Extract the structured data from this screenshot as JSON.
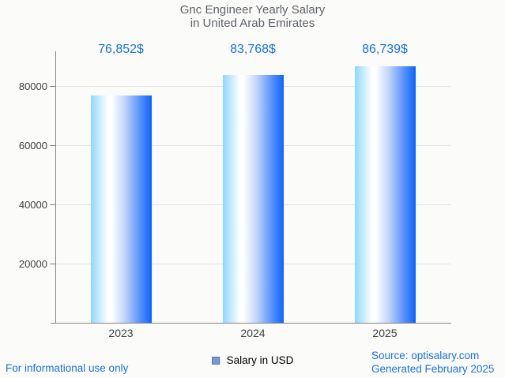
{
  "title": {
    "line1": "Gnc Engineer Yearly Salary",
    "line2": "in United Arab Emirates"
  },
  "chart_data": {
    "type": "bar",
    "title": "Gnc Engineer Yearly Salary in United Arab Emirates",
    "categories": [
      "2023",
      "2024",
      "2025"
    ],
    "values": [
      76852,
      83768,
      86739
    ],
    "value_labels": [
      "76,852$",
      "83,768$",
      "86,739$"
    ],
    "series_name": "Salary in USD",
    "xlabel": "",
    "ylabel": "",
    "ylim": [
      0,
      91700
    ],
    "yticks": [
      20000,
      40000,
      60000,
      80000
    ],
    "grid": true,
    "legend_position": "bottom",
    "bar_gradient": [
      "#8ED8FB",
      "#FFFFFF",
      "#0B64FE"
    ]
  },
  "legend": {
    "label": "Salary in USD",
    "marker_color": "#6C9CE6"
  },
  "footer": {
    "left_note": "For informational use only",
    "source": "Source: optisalary.com",
    "generated": "Generated February 2025"
  },
  "colors": {
    "value_label": "#1A73E8",
    "title_text": "#5F6368",
    "axis": "#848484",
    "gridline": "#E4E4E4",
    "tick_label": "#3F3F3F",
    "footer_text": "#1A73E8",
    "background": "#FBFBFA"
  }
}
